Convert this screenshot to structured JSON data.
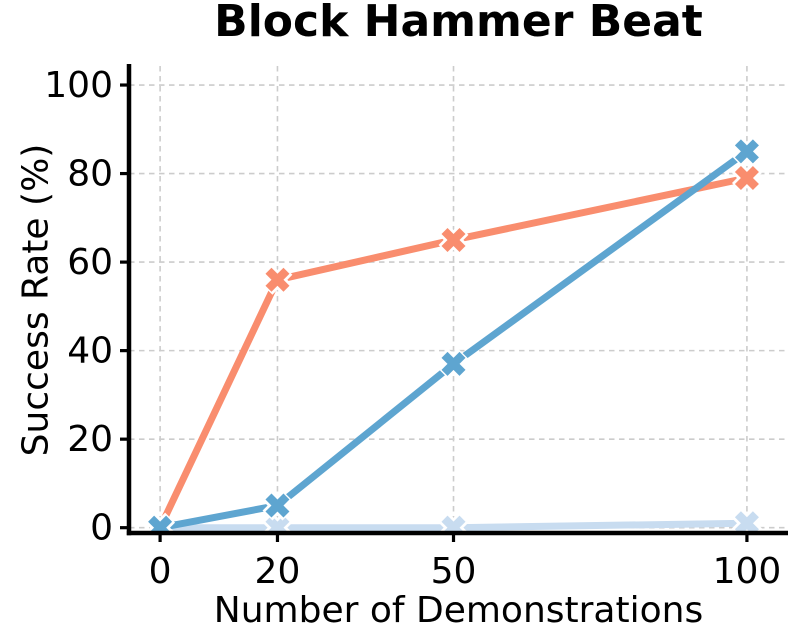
{
  "chart_data": {
    "type": "line",
    "title": "Block Hammer Beat",
    "xlabel": "Number of Demonstrations",
    "ylabel": "Success Rate (%)",
    "x": [
      0,
      20,
      50,
      100
    ],
    "series": [
      {
        "name": "light-blue-series",
        "color": "#C8DCF0",
        "values": [
          0,
          0,
          0,
          1
        ]
      },
      {
        "name": "orange-series",
        "color": "#F98D6E",
        "values": [
          0,
          56,
          65,
          79
        ]
      },
      {
        "name": "blue-series",
        "color": "#5EA5D0",
        "values": [
          0,
          5,
          37,
          85
        ]
      }
    ],
    "marker": "X",
    "marker_edge_color": "#ffffff",
    "xticks": [
      0,
      20,
      50,
      100
    ],
    "yticks": [
      0,
      20,
      40,
      60,
      80,
      100
    ],
    "xlim": [
      -5.3,
      107.0
    ],
    "ylim": [
      -1.2,
      104.3
    ],
    "grid": true,
    "grid_style": "dashed",
    "grid_color": "#cccccc",
    "axis_color": "#000000",
    "background_color": "#ffffff",
    "legend": "none"
  }
}
